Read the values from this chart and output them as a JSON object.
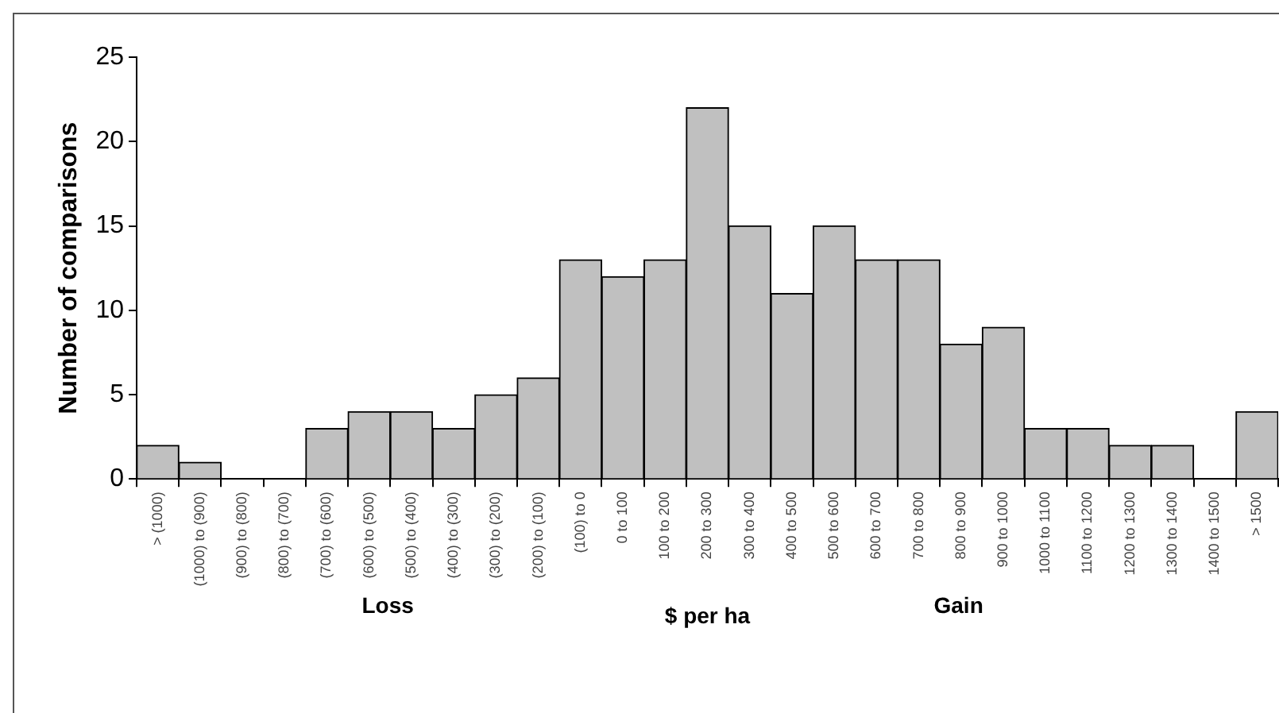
{
  "chart_data": {
    "type": "bar",
    "xlabel": "$ per ha",
    "ylabel": "Number of comparisons",
    "categories": [
      "> (1000)",
      "(1000) to (900)",
      "(900) to (800)",
      "(800) to (700)",
      "(700) to (600)",
      "(600) to (500)",
      "(500) to (400)",
      "(400) to (300)",
      "(300) to (200)",
      "(200) to (100)",
      "(100) to 0",
      "0 to 100",
      "100 to 200",
      "200 to 300",
      "300 to 400",
      "400 to 500",
      "500 to 600",
      "600 to 700",
      "700 to 800",
      "800 to 900",
      "900 to 1000",
      "1000 to 1100",
      "1100 to 1200",
      "1200 to 1300",
      "1300 to 1400",
      "1400 to 1500",
      "> 1500"
    ],
    "values": [
      2,
      1,
      0,
      0,
      3,
      4,
      4,
      3,
      5,
      6,
      13,
      12,
      13,
      22,
      15,
      11,
      15,
      13,
      13,
      8,
      9,
      3,
      3,
      2,
      2,
      0,
      4
    ],
    "color": "#c0c0c0",
    "ylim": [
      0,
      25
    ],
    "yticks": [
      0,
      5,
      10,
      15,
      20,
      25
    ],
    "grid": false,
    "legend": false,
    "annotations": [
      "Loss",
      "Gain"
    ]
  }
}
